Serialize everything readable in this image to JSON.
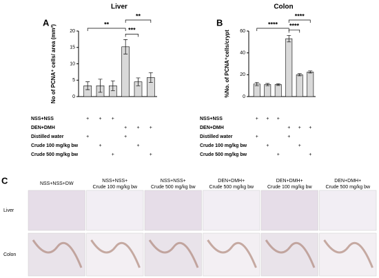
{
  "chart_data": [
    {
      "type": "bar",
      "panel": "A",
      "title": "Liver",
      "y_label": "No of PCNA⁺ cells/ area (mm²)",
      "categories": [
        null,
        null,
        null,
        null,
        null,
        null
      ],
      "values": [
        3.3,
        3.3,
        3.3,
        15.2,
        4.5,
        5.8
      ],
      "errors": [
        1.2,
        2.0,
        1.5,
        2.2,
        1.2,
        1.5
      ],
      "color": "#d9d9d9",
      "ylim": [
        0,
        20
      ],
      "yticks": [
        0,
        5,
        10,
        15,
        20
      ],
      "significance": [
        {
          "from": 0,
          "to": 3,
          "label": "**"
        },
        {
          "from": 3,
          "to": 4,
          "label": "***"
        },
        {
          "from": 3,
          "to": 5,
          "label": "**"
        }
      ],
      "treatments": [
        {
          "label": "NSS+NSS",
          "marks": [
            "+",
            "+",
            "+",
            null,
            null,
            null
          ]
        },
        {
          "label": "DEN+DMH",
          "marks": [
            null,
            null,
            null,
            "+",
            "+",
            "+"
          ]
        },
        {
          "label": "Distilled water",
          "marks": [
            "+",
            null,
            null,
            "+",
            null,
            null
          ]
        },
        {
          "label": "Crude 100 mg/kg bw",
          "marks": [
            null,
            "+",
            null,
            null,
            "+",
            null
          ]
        },
        {
          "label": "Crude 500 mg/kg bw",
          "marks": [
            null,
            null,
            "+",
            null,
            null,
            "+"
          ]
        }
      ]
    },
    {
      "type": "bar",
      "panel": "B",
      "title": "Colon",
      "y_label": "%No. of PCNA⁺cells/crypt",
      "categories": [
        null,
        null,
        null,
        null,
        null,
        null
      ],
      "values": [
        11.5,
        11,
        11,
        53,
        20,
        22.5
      ],
      "errors": [
        1.5,
        1.0,
        0.8,
        3.0,
        1.0,
        1.0
      ],
      "color": "#d9d9d9",
      "ylim": [
        0,
        60
      ],
      "yticks": [
        0,
        20,
        40,
        60
      ],
      "significance": [
        {
          "from": 0,
          "to": 3,
          "label": "****"
        },
        {
          "from": 3,
          "to": 4,
          "label": "****"
        },
        {
          "from": 3,
          "to": 5,
          "label": "****"
        }
      ],
      "treatments": [
        {
          "label": "NSS+NSS",
          "marks": [
            "+",
            "+",
            "+",
            null,
            null,
            null
          ]
        },
        {
          "label": "DEN+DMH",
          "marks": [
            null,
            null,
            null,
            "+",
            "+",
            "+"
          ]
        },
        {
          "label": "Distilled water",
          "marks": [
            "+",
            null,
            null,
            "+",
            null,
            null
          ]
        },
        {
          "label": "Crude 100 mg/kg bw",
          "marks": [
            null,
            "+",
            null,
            null,
            "+",
            null
          ]
        },
        {
          "label": "Crude 500 mg/kg bw",
          "marks": [
            null,
            null,
            "+",
            null,
            null,
            "+"
          ]
        }
      ]
    }
  ],
  "panel_c": {
    "label": "C",
    "columns": [
      [
        "NSS+NSS+DW"
      ],
      [
        "NSS+NSS+",
        "Crude 100 mg/kg bw"
      ],
      [
        "NSS+NSS+",
        "Crude 500 mg/kg bw"
      ],
      [
        "DEN+DMH+",
        "Crude 500 mg/kg bw"
      ],
      [
        "DEN+DMH+",
        "Crude 100 mg/kg bw"
      ],
      [
        "DEN+DMH+",
        "Crude 500 mg/kg bw"
      ]
    ],
    "rows": [
      "Liver",
      "Colon"
    ]
  }
}
